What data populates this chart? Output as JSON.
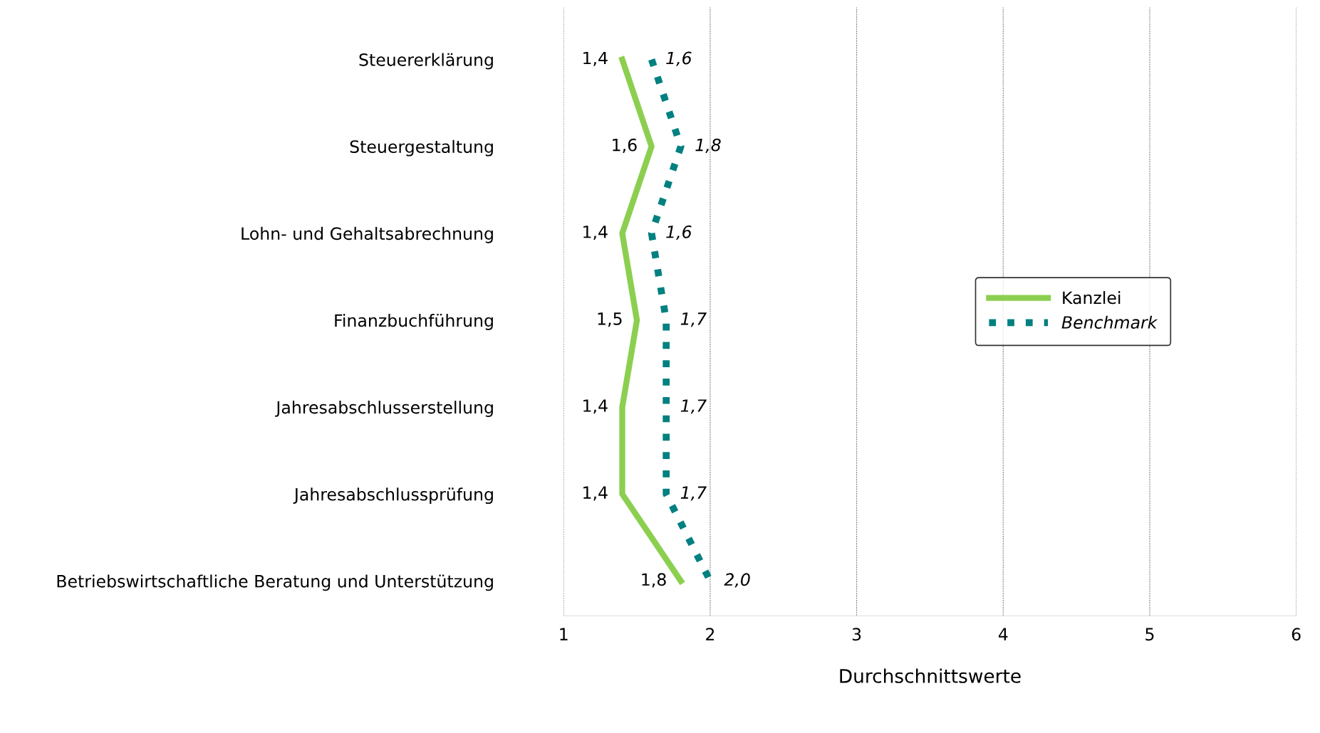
{
  "chart_data": {
    "type": "line",
    "orientation": "horizontal",
    "xlabel": "Durchschnittswerte",
    "categories": [
      "Steuererklärung",
      "Steuergestaltung",
      "Lohn- und Gehaltsabrechnung",
      "Finanzbuchführung",
      "Jahresabschlusserstellung",
      "Jahresabschlussprüfung",
      "Betriebswirtschaftliche Beratung und Unterstützung"
    ],
    "series": [
      {
        "name": "Kanzlei",
        "color": "#8ccf50",
        "line_style": "solid",
        "values": [
          1.4,
          1.6,
          1.4,
          1.5,
          1.4,
          1.4,
          1.8
        ],
        "value_labels": [
          "1,4",
          "1,6",
          "1,4",
          "1,5",
          "1,4",
          "1,4",
          "1,8"
        ]
      },
      {
        "name": "Benchmark",
        "color": "#008080",
        "line_style": "dotted",
        "values": [
          1.6,
          1.8,
          1.6,
          1.7,
          1.7,
          1.7,
          2.0
        ],
        "value_labels": [
          "1,6",
          "1,8",
          "1,6",
          "1,7",
          "1,7",
          "1,7",
          "2,0"
        ]
      }
    ],
    "xlim": [
      1,
      6
    ],
    "xticks": [
      1,
      2,
      3,
      4,
      5,
      6
    ],
    "grid": "x",
    "legend": "right",
    "marker": "none"
  }
}
